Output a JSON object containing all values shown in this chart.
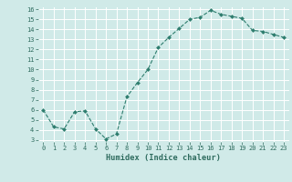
{
  "x": [
    0,
    1,
    2,
    3,
    4,
    5,
    6,
    7,
    8,
    9,
    10,
    11,
    12,
    13,
    14,
    15,
    16,
    17,
    18,
    19,
    20,
    21,
    22,
    23
  ],
  "y": [
    6.0,
    4.3,
    4.1,
    5.8,
    5.9,
    4.1,
    3.1,
    3.6,
    7.3,
    8.7,
    10.0,
    12.2,
    13.2,
    14.1,
    15.0,
    15.2,
    15.9,
    15.5,
    15.3,
    15.1,
    13.9,
    13.8,
    13.5,
    13.2
  ],
  "xlabel": "Humidex (Indice chaleur)",
  "line_color": "#2e7d6e",
  "marker_color": "#2e7d6e",
  "bg_color": "#d0eae8",
  "grid_color": "#ffffff",
  "ylim_min": 3,
  "ylim_max": 16,
  "xlim_min": -0.5,
  "xlim_max": 23.5,
  "yticks": [
    3,
    4,
    5,
    6,
    7,
    8,
    9,
    10,
    11,
    12,
    13,
    14,
    15,
    16
  ],
  "xticks": [
    0,
    1,
    2,
    3,
    4,
    5,
    6,
    7,
    8,
    9,
    10,
    11,
    12,
    13,
    14,
    15,
    16,
    17,
    18,
    19,
    20,
    21,
    22,
    23
  ],
  "tick_color": "#2e6b5e",
  "font_family": "monospace",
  "tick_fontsize": 5.0,
  "xlabel_fontsize": 6.2
}
